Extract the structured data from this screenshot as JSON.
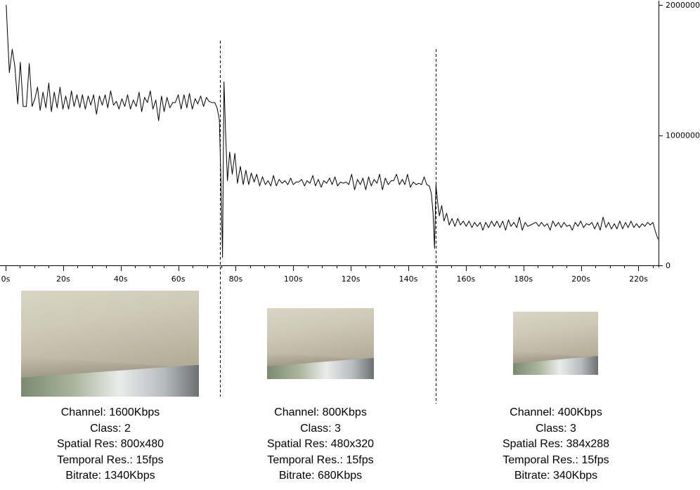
{
  "chart_data": {
    "type": "line",
    "x_unit": "s",
    "x_ticks": [
      "0s",
      "20s",
      "40s",
      "60s",
      "80s",
      "100s",
      "120s",
      "140s",
      "160s",
      "180s",
      "200s",
      "220s"
    ],
    "x_tick_values": [
      0,
      20,
      40,
      60,
      80,
      100,
      120,
      140,
      160,
      180,
      200,
      220
    ],
    "y_ticks": [
      "0",
      "1000000",
      "2000000"
    ],
    "y_tick_values": [
      0,
      1000000,
      2000000
    ],
    "xlim": [
      0,
      228
    ],
    "ylim": [
      0,
      2000000
    ],
    "grid": false,
    "markers_x": [
      74.5,
      149.5
    ],
    "series": [
      {
        "values": [
          [
            0.2,
            2000000
          ],
          [
            1.3,
            1480000
          ],
          [
            2.3,
            1660000
          ],
          [
            3.2,
            1530000
          ],
          [
            4.2,
            1240000
          ],
          [
            5.1,
            1560000
          ],
          [
            6.1,
            1220000
          ],
          [
            7.2,
            1220000
          ],
          [
            8.2,
            1550000
          ],
          [
            9.2,
            1220000
          ],
          [
            10.2,
            1280000
          ],
          [
            11.1,
            1370000
          ],
          [
            12.0,
            1190000
          ],
          [
            13.0,
            1330000
          ],
          [
            14.0,
            1210000
          ],
          [
            15.0,
            1400000
          ],
          [
            15.9,
            1180000
          ],
          [
            16.9,
            1330000
          ],
          [
            17.9,
            1210000
          ],
          [
            18.9,
            1370000
          ],
          [
            19.9,
            1200000
          ],
          [
            20.9,
            1300000
          ],
          [
            21.9,
            1200000
          ],
          [
            22.9,
            1340000
          ],
          [
            23.8,
            1220000
          ],
          [
            24.8,
            1310000
          ],
          [
            25.8,
            1210000
          ],
          [
            26.7,
            1310000
          ],
          [
            27.7,
            1200000
          ],
          [
            28.7,
            1300000
          ],
          [
            29.6,
            1230000
          ],
          [
            30.6,
            1310000
          ],
          [
            31.6,
            1160000
          ],
          [
            32.6,
            1300000
          ],
          [
            33.6,
            1230000
          ],
          [
            34.6,
            1310000
          ],
          [
            35.5,
            1210000
          ],
          [
            36.5,
            1340000
          ],
          [
            37.5,
            1230000
          ],
          [
            38.5,
            1260000
          ],
          [
            39.4,
            1200000
          ],
          [
            40.4,
            1280000
          ],
          [
            41.4,
            1220000
          ],
          [
            42.4,
            1310000
          ],
          [
            43.4,
            1200000
          ],
          [
            44.4,
            1270000
          ],
          [
            45.4,
            1220000
          ],
          [
            46.4,
            1330000
          ],
          [
            47.3,
            1180000
          ],
          [
            48.3,
            1290000
          ],
          [
            49.3,
            1250000
          ],
          [
            50.3,
            1340000
          ],
          [
            51.2,
            1200000
          ],
          [
            52.2,
            1270000
          ],
          [
            53.2,
            1110000
          ],
          [
            54.2,
            1300000
          ],
          [
            55.1,
            1180000
          ],
          [
            56.1,
            1290000
          ],
          [
            57.1,
            1210000
          ],
          [
            58.1,
            1250000
          ],
          [
            59.0,
            1250000
          ],
          [
            60.0,
            1310000
          ],
          [
            61.0,
            1200000
          ],
          [
            62.0,
            1310000
          ],
          [
            63.0,
            1210000
          ],
          [
            63.9,
            1320000
          ],
          [
            64.9,
            1200000
          ],
          [
            65.9,
            1280000
          ],
          [
            66.8,
            1240000
          ],
          [
            67.8,
            1300000
          ],
          [
            68.8,
            1220000
          ],
          [
            69.8,
            1290000
          ],
          [
            70.7,
            1260000
          ],
          [
            71.7,
            1250000
          ],
          [
            72.7,
            1250000
          ],
          [
            73.5,
            1210000
          ],
          [
            74.3,
            1120000
          ],
          [
            74.9,
            600000
          ],
          [
            75.4,
            60000
          ],
          [
            75.9,
            1410000
          ],
          [
            76.5,
            1000000
          ],
          [
            77.1,
            650000
          ],
          [
            77.9,
            870000
          ],
          [
            78.8,
            700000
          ],
          [
            79.7,
            860000
          ],
          [
            80.6,
            630000
          ],
          [
            81.6,
            760000
          ],
          [
            82.6,
            620000
          ],
          [
            83.5,
            730000
          ],
          [
            84.5,
            620000
          ],
          [
            85.4,
            710000
          ],
          [
            86.4,
            640000
          ],
          [
            87.3,
            700000
          ],
          [
            88.3,
            610000
          ],
          [
            89.3,
            680000
          ],
          [
            90.3,
            620000
          ],
          [
            91.2,
            650000
          ],
          [
            92.2,
            610000
          ],
          [
            93.1,
            690000
          ],
          [
            94.1,
            610000
          ],
          [
            95.1,
            660000
          ],
          [
            96.1,
            630000
          ],
          [
            97.1,
            650000
          ],
          [
            98.1,
            620000
          ],
          [
            99.1,
            670000
          ],
          [
            100.0,
            620000
          ],
          [
            101.0,
            640000
          ],
          [
            101.9,
            640000
          ],
          [
            102.9,
            660000
          ],
          [
            103.9,
            610000
          ],
          [
            104.8,
            650000
          ],
          [
            105.8,
            630000
          ],
          [
            106.8,
            690000
          ],
          [
            107.7,
            610000
          ],
          [
            108.7,
            660000
          ],
          [
            109.7,
            600000
          ],
          [
            110.6,
            650000
          ],
          [
            111.6,
            630000
          ],
          [
            112.6,
            670000
          ],
          [
            113.5,
            620000
          ],
          [
            114.5,
            680000
          ],
          [
            115.4,
            610000
          ],
          [
            116.4,
            640000
          ],
          [
            117.4,
            630000
          ],
          [
            118.4,
            640000
          ],
          [
            119.3,
            620000
          ],
          [
            120.3,
            700000
          ],
          [
            121.3,
            580000
          ],
          [
            122.3,
            660000
          ],
          [
            123.3,
            620000
          ],
          [
            124.2,
            670000
          ],
          [
            125.2,
            580000
          ],
          [
            126.2,
            680000
          ],
          [
            127.1,
            610000
          ],
          [
            128.1,
            660000
          ],
          [
            129.1,
            630000
          ],
          [
            130.0,
            700000
          ],
          [
            131.0,
            580000
          ],
          [
            132.0,
            670000
          ],
          [
            133.0,
            620000
          ],
          [
            134.0,
            650000
          ],
          [
            134.9,
            650000
          ],
          [
            135.9,
            700000
          ],
          [
            136.9,
            620000
          ],
          [
            137.9,
            660000
          ],
          [
            138.8,
            620000
          ],
          [
            139.7,
            700000
          ],
          [
            140.7,
            600000
          ],
          [
            141.7,
            640000
          ],
          [
            142.7,
            620000
          ],
          [
            143.6,
            630000
          ],
          [
            144.6,
            620000
          ],
          [
            145.5,
            680000
          ],
          [
            146.4,
            620000
          ],
          [
            147.3,
            610000
          ],
          [
            148.0,
            550000
          ],
          [
            148.6,
            400000
          ],
          [
            149.1,
            130000
          ],
          [
            149.6,
            620000
          ],
          [
            150.2,
            480000
          ],
          [
            150.8,
            380000
          ],
          [
            151.6,
            460000
          ],
          [
            152.4,
            340000
          ],
          [
            153.3,
            400000
          ],
          [
            154.2,
            310000
          ],
          [
            155.2,
            360000
          ],
          [
            156.2,
            300000
          ],
          [
            157.2,
            360000
          ],
          [
            158.1,
            310000
          ],
          [
            159.1,
            340000
          ],
          [
            160.1,
            300000
          ],
          [
            161.1,
            340000
          ],
          [
            162.1,
            290000
          ],
          [
            163.0,
            330000
          ],
          [
            164.0,
            300000
          ],
          [
            165.0,
            330000
          ],
          [
            165.9,
            270000
          ],
          [
            166.9,
            330000
          ],
          [
            167.9,
            290000
          ],
          [
            168.9,
            340000
          ],
          [
            169.9,
            300000
          ],
          [
            170.8,
            340000
          ],
          [
            171.8,
            290000
          ],
          [
            172.8,
            340000
          ],
          [
            173.8,
            270000
          ],
          [
            174.8,
            350000
          ],
          [
            175.7,
            300000
          ],
          [
            176.7,
            330000
          ],
          [
            177.7,
            290000
          ],
          [
            178.6,
            370000
          ],
          [
            179.6,
            270000
          ],
          [
            180.6,
            330000
          ],
          [
            181.5,
            300000
          ],
          [
            182.5,
            310000
          ],
          [
            183.4,
            320000
          ],
          [
            184.4,
            330000
          ],
          [
            185.4,
            300000
          ],
          [
            186.3,
            330000
          ],
          [
            187.3,
            300000
          ],
          [
            188.3,
            320000
          ],
          [
            189.3,
            270000
          ],
          [
            190.2,
            340000
          ],
          [
            191.2,
            300000
          ],
          [
            192.2,
            330000
          ],
          [
            193.1,
            290000
          ],
          [
            194.1,
            330000
          ],
          [
            195.1,
            300000
          ],
          [
            196.1,
            310000
          ],
          [
            197.0,
            270000
          ],
          [
            198.0,
            330000
          ],
          [
            199.0,
            300000
          ],
          [
            199.9,
            340000
          ],
          [
            200.9,
            290000
          ],
          [
            201.9,
            320000
          ],
          [
            202.9,
            310000
          ],
          [
            203.8,
            330000
          ],
          [
            204.8,
            280000
          ],
          [
            205.8,
            330000
          ],
          [
            206.7,
            270000
          ],
          [
            207.7,
            370000
          ],
          [
            208.7,
            290000
          ],
          [
            209.6,
            330000
          ],
          [
            210.6,
            280000
          ],
          [
            211.6,
            320000
          ],
          [
            212.5,
            280000
          ],
          [
            213.5,
            340000
          ],
          [
            214.5,
            280000
          ],
          [
            215.5,
            330000
          ],
          [
            216.4,
            290000
          ],
          [
            217.4,
            340000
          ],
          [
            218.4,
            290000
          ],
          [
            219.3,
            320000
          ],
          [
            220.3,
            290000
          ],
          [
            221.3,
            320000
          ],
          [
            222.2,
            300000
          ],
          [
            223.2,
            330000
          ],
          [
            224.1,
            310000
          ],
          [
            225.0,
            330000
          ],
          [
            225.9,
            260000
          ],
          [
            226.8,
            200000
          ]
        ]
      }
    ]
  },
  "panels": [
    {
      "channel": "Channel: 1600Kbps",
      "class": "Class: 2",
      "spatial": "Spatial Res: 800x480",
      "temporal": "Temporal Res.: 15fps",
      "bitrate": "Bitrate: 1340Kbps"
    },
    {
      "channel": "Channel: 800Kbps",
      "class": "Class: 3",
      "spatial": "Spatial Res: 480x320",
      "temporal": "Temporal Res.: 15fps",
      "bitrate": "Bitrate: 680Kbps"
    },
    {
      "channel": "Channel: 400Kbps",
      "class": "Class: 3",
      "spatial": "Spatial Res: 384x288",
      "temporal": "Temporal Res.: 15fps",
      "bitrate": "Bitrate: 340Kbps"
    }
  ],
  "colors": {
    "line": "#000000",
    "axis": "#000000",
    "background": "#ffffff"
  }
}
